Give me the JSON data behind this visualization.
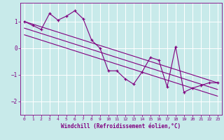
{
  "xlabel": "Windchill (Refroidissement éolien,°C)",
  "ylabel": "",
  "bg_color": "#c8eaea",
  "grid_color": "#ffffff",
  "line_color": "#800080",
  "marker_color": "#800080",
  "xlim": [
    -0.5,
    23.5
  ],
  "ylim": [
    -2.5,
    1.7
  ],
  "xticks": [
    0,
    1,
    2,
    3,
    4,
    5,
    6,
    7,
    8,
    9,
    10,
    11,
    12,
    13,
    14,
    15,
    16,
    17,
    18,
    19,
    20,
    21,
    22,
    23
  ],
  "yticks": [
    -2,
    -1,
    0,
    1
  ],
  "data_x": [
    0,
    1,
    2,
    3,
    4,
    5,
    6,
    7,
    8,
    9,
    10,
    11,
    12,
    13,
    14,
    15,
    16,
    17,
    18,
    19,
    20,
    21,
    22,
    23
  ],
  "data_y": [
    1.0,
    0.85,
    0.7,
    1.3,
    1.05,
    1.2,
    1.4,
    1.1,
    0.3,
    0.0,
    -0.85,
    -0.85,
    -1.15,
    -1.35,
    -0.9,
    -0.35,
    -0.45,
    -1.45,
    0.05,
    -1.65,
    -1.5,
    -1.4,
    -1.3,
    -1.3
  ],
  "trend1_x": [
    0,
    23
  ],
  "trend1_y": [
    1.0,
    -1.3
  ],
  "trend2_x": [
    0,
    23
  ],
  "trend2_y": [
    0.75,
    -1.55
  ],
  "trend3_x": [
    0,
    23
  ],
  "trend3_y": [
    0.5,
    -1.8
  ]
}
